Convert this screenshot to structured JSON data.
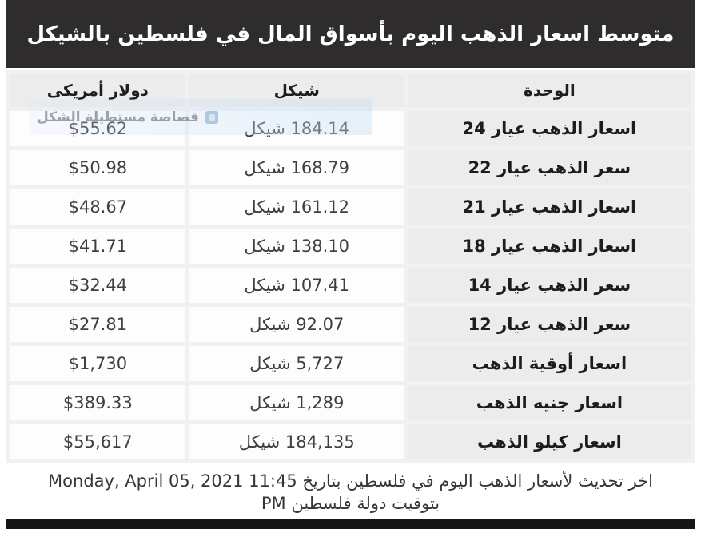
{
  "title": "متوسط اسعار الذهب اليوم بأسواق المال في فلسطين بالشيكل",
  "watermark": {
    "text": "قصاصة مستطيلة الشكل",
    "icon": "snip-icon"
  },
  "table": {
    "headers": {
      "unit": "الوحدة",
      "shekel": "شيكل",
      "dollar": "دولار أمريكى"
    },
    "rows": [
      {
        "unit": "اسعار الذهب عيار 24",
        "shekel": "184.14 شيكل",
        "dollar": "$55.62"
      },
      {
        "unit": "سعر الذهب عيار 22",
        "shekel": "168.79 شيكل",
        "dollar": "$50.98"
      },
      {
        "unit": "اسعار الذهب عيار 21",
        "shekel": "161.12 شيكل",
        "dollar": "$48.67"
      },
      {
        "unit": "اسعار الذهب عيار 18",
        "shekel": "138.10 شيكل",
        "dollar": "$41.71"
      },
      {
        "unit": "سعر الذهب عيار 14",
        "shekel": "107.41 شيكل",
        "dollar": "$32.44"
      },
      {
        "unit": "سعر الذهب عيار 12",
        "shekel": "92.07 شيكل",
        "dollar": "$27.81"
      },
      {
        "unit": "اسعار أوقية الذهب",
        "shekel": "5,727 شيكل",
        "dollar": "$1,730"
      },
      {
        "unit": "اسعار جنيه الذهب",
        "shekel": "1,289 شيكل",
        "dollar": "$389.33"
      },
      {
        "unit": "اسعار كيلو الذهب",
        "shekel": "184,135 شيكل",
        "dollar": "$55,617"
      }
    ]
  },
  "footer": {
    "prefix_ar": "اخر تحديث لأسعار الذهب اليوم في فلسطين بتاريخ",
    "datetime": "Monday, April 05, 2021 11:45",
    "meridiem": "PM",
    "suffix_ar": "بتوقيت دولة فلسطين"
  },
  "colors": {
    "title_bg": "#2e2c2c",
    "title_text": "#ffffff",
    "cell_gray": "#ececec",
    "cell_white": "#fdfdfd",
    "grid_gap": "#f1f1f1",
    "label_text": "#1d1d1d",
    "value_text": "#3f3f3f",
    "bottom_bar": "#161616",
    "watermark_tint": "#c6ddf3"
  }
}
